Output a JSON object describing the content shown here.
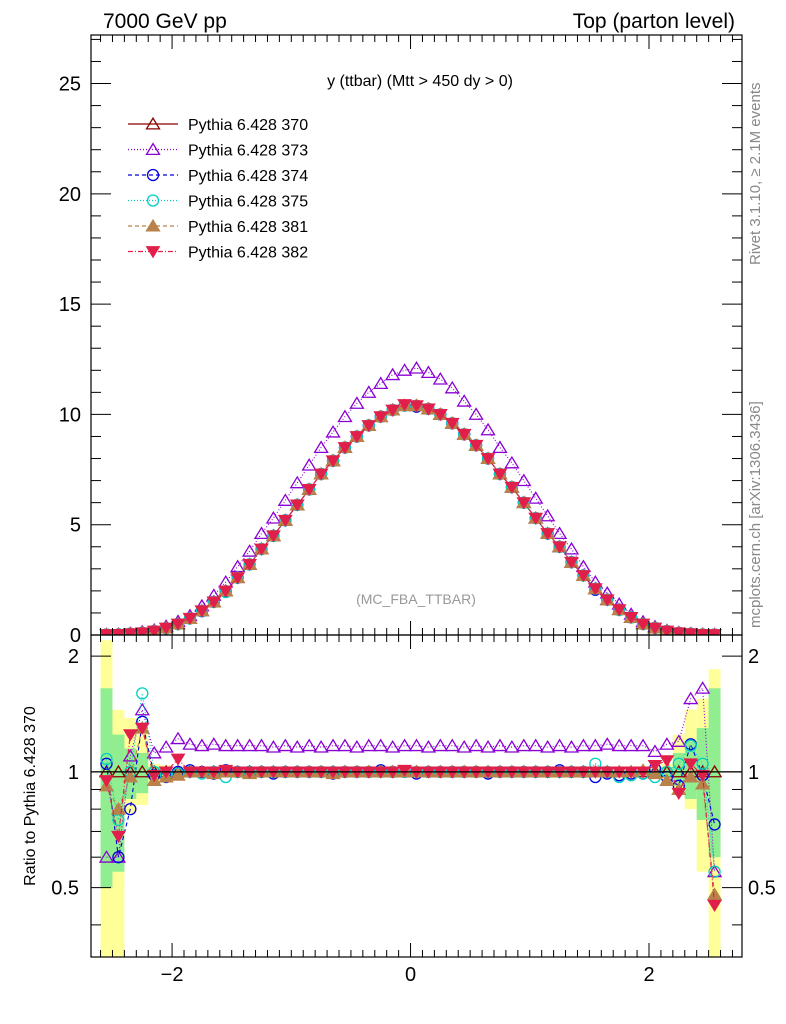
{
  "header": {
    "left": "7000 GeV pp",
    "right": "Top (parton level)"
  },
  "side_text": {
    "rivet": "Rivet 3.1.10, ≥ 2.1M events",
    "mcplots": "mcplots.cern.ch [arXiv:1306.3436]"
  },
  "colors": {
    "370": "#8b0000",
    "373": "#8a00d4",
    "374": "#0000e0",
    "375": "#00d0c0",
    "381": "#b8824a",
    "382": "#e0204a",
    "band_yellow": "#ffff99",
    "band_green": "#90ee90"
  },
  "chart_data": {
    "type": "line",
    "title": "y (ttbar) (Mtt > 450 dy > 0)",
    "watermark": "(MC_FBA_TTBAR)",
    "xlabel": "",
    "ylabel": "",
    "ratio_ylabel": "Ratio to Pythia 6.428 370",
    "xlim": [
      -2.68,
      2.78
    ],
    "ylim": [
      0,
      27.2
    ],
    "ratio_ylim": [
      0.33,
      2.27
    ],
    "x_ticks": [
      "−2",
      "0",
      "2"
    ],
    "y_ticks": [
      "0",
      "5",
      "10",
      "15",
      "20",
      "25"
    ],
    "ratio_y_ticks": [
      "0.5",
      "1",
      "2"
    ],
    "x": [
      -2.55,
      -2.45,
      -2.35,
      -2.25,
      -2.15,
      -2.05,
      -1.95,
      -1.85,
      -1.75,
      -1.65,
      -1.55,
      -1.45,
      -1.35,
      -1.25,
      -1.15,
      -1.05,
      -0.95,
      -0.85,
      -0.75,
      -0.65,
      -0.55,
      -0.45,
      -0.35,
      -0.25,
      -0.15,
      -0.05,
      0.05,
      0.15,
      0.25,
      0.35,
      0.45,
      0.55,
      0.65,
      0.75,
      0.85,
      0.95,
      1.05,
      1.15,
      1.25,
      1.35,
      1.45,
      1.55,
      1.65,
      1.75,
      1.85,
      1.95,
      2.05,
      2.15,
      2.25,
      2.35,
      2.45,
      2.55
    ],
    "series": [
      {
        "name": "Pythia 6.428 370",
        "key": "370",
        "marker": "triangle-open",
        "dash": "",
        "values": [
          0.02,
          0.03,
          0.06,
          0.1,
          0.18,
          0.32,
          0.5,
          0.75,
          1.1,
          1.5,
          2.0,
          2.6,
          3.2,
          3.9,
          4.5,
          5.2,
          5.9,
          6.6,
          7.3,
          7.9,
          8.5,
          9.0,
          9.5,
          9.9,
          10.2,
          10.4,
          10.4,
          10.25,
          10.0,
          9.6,
          9.1,
          8.6,
          8.0,
          7.3,
          6.7,
          6.0,
          5.3,
          4.6,
          4.0,
          3.3,
          2.7,
          2.1,
          1.6,
          1.15,
          0.8,
          0.5,
          0.32,
          0.18,
          0.1,
          0.06,
          0.03,
          0.02
        ],
        "ratio": [
          1.0,
          1.0,
          1.0,
          1.0,
          1.0,
          1.0,
          1.0,
          1.0,
          1.0,
          1.0,
          1.0,
          1.0,
          1.0,
          1.0,
          1.0,
          1.0,
          1.0,
          1.0,
          1.0,
          1.0,
          1.0,
          1.0,
          1.0,
          1.0,
          1.0,
          1.0,
          1.0,
          1.0,
          1.0,
          1.0,
          1.0,
          1.0,
          1.0,
          1.0,
          1.0,
          1.0,
          1.0,
          1.0,
          1.0,
          1.0,
          1.0,
          1.0,
          1.0,
          1.0,
          1.0,
          1.0,
          1.0,
          1.0,
          1.0,
          1.0,
          1.0,
          1.0
        ]
      },
      {
        "name": "Pythia 6.428 373",
        "key": "373",
        "marker": "triangle-open",
        "dash": "1,2",
        "values": [
          0.03,
          0.04,
          0.08,
          0.15,
          0.23,
          0.4,
          0.62,
          0.88,
          1.32,
          1.8,
          2.4,
          3.1,
          3.8,
          4.6,
          5.3,
          6.1,
          6.9,
          7.7,
          8.5,
          9.2,
          9.9,
          10.5,
          11.0,
          11.4,
          11.8,
          12.0,
          12.1,
          11.9,
          11.6,
          11.2,
          10.6,
          10.0,
          9.3,
          8.5,
          7.8,
          7.0,
          6.2,
          5.4,
          4.6,
          3.9,
          3.1,
          2.4,
          1.9,
          1.4,
          0.94,
          0.6,
          0.38,
          0.21,
          0.12,
          0.07,
          0.04,
          0.03
        ],
        "ratio": [
          0.6,
          0.6,
          1.1,
          1.45,
          1.12,
          1.16,
          1.22,
          1.18,
          1.17,
          1.18,
          1.17,
          1.17,
          1.17,
          1.17,
          1.16,
          1.17,
          1.16,
          1.17,
          1.16,
          1.17,
          1.17,
          1.16,
          1.17,
          1.17,
          1.16,
          1.17,
          1.17,
          1.16,
          1.17,
          1.17,
          1.16,
          1.17,
          1.16,
          1.17,
          1.16,
          1.17,
          1.17,
          1.16,
          1.17,
          1.16,
          1.17,
          1.17,
          1.18,
          1.17,
          1.17,
          1.17,
          1.13,
          1.18,
          1.2,
          1.55,
          1.65,
          0.55
        ]
      },
      {
        "name": "Pythia 6.428 374",
        "key": "374",
        "marker": "circle-open",
        "dash": "4,3",
        "values": [
          0.02,
          0.03,
          0.06,
          0.1,
          0.18,
          0.31,
          0.5,
          0.75,
          1.08,
          1.5,
          1.98,
          2.6,
          3.2,
          3.9,
          4.5,
          5.2,
          5.9,
          6.6,
          7.3,
          7.9,
          8.5,
          9.0,
          9.5,
          9.9,
          10.2,
          10.4,
          10.35,
          10.25,
          10.0,
          9.6,
          9.1,
          8.6,
          8.0,
          7.3,
          6.7,
          6.0,
          5.3,
          4.6,
          4.0,
          3.3,
          2.7,
          2.05,
          1.6,
          1.15,
          0.8,
          0.5,
          0.32,
          0.18,
          0.1,
          0.06,
          0.03,
          0.02
        ],
        "ratio": [
          1.05,
          0.6,
          0.8,
          1.35,
          0.98,
          0.97,
          1.0,
          1.01,
          1.0,
          0.99,
          1.01,
          1.0,
          1.0,
          1.0,
          0.99,
          1.0,
          1.0,
          1.0,
          1.0,
          0.99,
          1.0,
          1.0,
          1.0,
          1.01,
          1.0,
          1.0,
          0.99,
          1.0,
          1.0,
          1.0,
          1.0,
          1.0,
          0.99,
          1.0,
          1.0,
          1.0,
          1.0,
          1.0,
          1.01,
          1.0,
          1.0,
          0.97,
          0.99,
          0.98,
          0.99,
          0.99,
          1.02,
          0.97,
          0.92,
          1.18,
          0.98,
          0.73
        ]
      },
      {
        "name": "Pythia 6.428 375",
        "key": "375",
        "marker": "circle-open",
        "dash": "1,2",
        "values": [
          0.02,
          0.03,
          0.06,
          0.1,
          0.18,
          0.31,
          0.49,
          0.75,
          1.1,
          1.5,
          1.95,
          2.6,
          3.2,
          3.9,
          4.5,
          5.2,
          5.9,
          6.6,
          7.3,
          7.9,
          8.5,
          9.0,
          9.5,
          9.9,
          10.2,
          10.4,
          10.4,
          10.25,
          10.0,
          9.6,
          9.1,
          8.6,
          8.0,
          7.3,
          6.7,
          6.0,
          5.3,
          4.6,
          4.0,
          3.3,
          2.7,
          2.1,
          1.6,
          1.13,
          0.8,
          0.5,
          0.32,
          0.18,
          0.1,
          0.06,
          0.03,
          0.02
        ],
        "ratio": [
          1.08,
          0.75,
          1.0,
          1.6,
          1.0,
          0.98,
          0.99,
          1.0,
          0.99,
          1.0,
          0.97,
          1.0,
          1.0,
          1.0,
          1.0,
          1.0,
          1.0,
          1.0,
          1.0,
          1.0,
          1.0,
          1.0,
          1.0,
          1.0,
          1.0,
          1.0,
          1.0,
          1.0,
          1.0,
          1.0,
          1.0,
          1.0,
          1.0,
          1.0,
          1.0,
          1.0,
          1.0,
          1.0,
          1.0,
          1.0,
          1.0,
          1.05,
          1.0,
          0.97,
          0.98,
          0.99,
          0.97,
          1.0,
          1.05,
          1.17,
          1.05,
          0.55
        ]
      },
      {
        "name": "Pythia 6.428 381",
        "key": "381",
        "marker": "triangle-filled",
        "dash": "4,3",
        "values": [
          0.02,
          0.03,
          0.06,
          0.1,
          0.18,
          0.32,
          0.5,
          0.75,
          1.1,
          1.5,
          2.0,
          2.6,
          3.2,
          3.9,
          4.5,
          5.2,
          5.9,
          6.6,
          7.3,
          7.9,
          8.5,
          9.0,
          9.5,
          9.9,
          10.2,
          10.4,
          10.4,
          10.25,
          10.0,
          9.6,
          9.1,
          8.6,
          8.0,
          7.3,
          6.7,
          6.0,
          5.3,
          4.6,
          4.0,
          3.3,
          2.7,
          2.1,
          1.6,
          1.15,
          0.8,
          0.5,
          0.32,
          0.18,
          0.1,
          0.06,
          0.03,
          0.02
        ],
        "ratio": [
          0.92,
          0.8,
          0.97,
          1.3,
          0.95,
          0.97,
          0.98,
          1.0,
          1.0,
          0.99,
          1.0,
          1.0,
          0.99,
          1.0,
          1.0,
          1.0,
          1.0,
          1.0,
          1.0,
          0.99,
          1.0,
          1.0,
          1.0,
          1.0,
          1.0,
          1.0,
          1.0,
          1.0,
          1.0,
          1.0,
          1.0,
          1.0,
          1.0,
          1.0,
          1.0,
          1.0,
          1.0,
          1.0,
          1.0,
          1.0,
          1.0,
          1.0,
          1.0,
          1.0,
          1.0,
          1.01,
          0.99,
          0.95,
          0.9,
          0.97,
          0.93,
          0.48
        ]
      },
      {
        "name": "Pythia 6.428 382",
        "key": "382",
        "marker": "triangle-down-filled",
        "dash": "5,2,1,2",
        "values": [
          0.02,
          0.03,
          0.06,
          0.1,
          0.18,
          0.32,
          0.5,
          0.76,
          1.1,
          1.5,
          2.0,
          2.6,
          3.2,
          3.9,
          4.5,
          5.2,
          5.9,
          6.6,
          7.3,
          7.9,
          8.5,
          9.0,
          9.5,
          9.9,
          10.2,
          10.45,
          10.4,
          10.25,
          10.0,
          9.6,
          9.1,
          8.6,
          8.0,
          7.3,
          6.7,
          6.0,
          5.3,
          4.6,
          4.0,
          3.3,
          2.7,
          2.1,
          1.6,
          1.15,
          0.8,
          0.5,
          0.32,
          0.18,
          0.1,
          0.06,
          0.03,
          0.02
        ],
        "ratio": [
          0.95,
          0.68,
          1.25,
          1.3,
          0.98,
          1.0,
          1.08,
          1.0,
          1.0,
          1.0,
          1.01,
          1.0,
          1.0,
          1.0,
          1.0,
          1.0,
          1.0,
          1.0,
          1.0,
          1.0,
          1.0,
          1.0,
          1.0,
          1.0,
          1.0,
          1.01,
          1.0,
          1.0,
          1.0,
          1.0,
          1.0,
          1.0,
          1.0,
          1.0,
          1.0,
          1.0,
          1.0,
          1.0,
          1.0,
          1.0,
          1.0,
          1.0,
          1.0,
          1.0,
          1.0,
          1.0,
          1.04,
          1.07,
          0.88,
          1.05,
          0.98,
          0.45
        ]
      }
    ],
    "band_yellow": [
      [
        2.2,
        0.2
      ],
      [
        1.45,
        0.3
      ],
      [
        1.38,
        0.78
      ],
      [
        1.3,
        0.82
      ],
      [
        1.05,
        0.93
      ],
      [
        1.04,
        0.95
      ]
    ],
    "band_green": [
      [
        1.65,
        0.5
      ],
      [
        1.25,
        0.55
      ],
      [
        1.15,
        0.85
      ],
      [
        1.12,
        0.88
      ],
      [
        1.03,
        0.97
      ],
      [
        1.02,
        0.98
      ]
    ],
    "band_yellow_right": [
      [
        1.03,
        0.96
      ],
      [
        1.05,
        0.94
      ],
      [
        1.25,
        0.88
      ],
      [
        1.45,
        0.8
      ],
      [
        1.55,
        0.55
      ],
      [
        1.85,
        0.2
      ]
    ],
    "band_green_right": [
      [
        1.02,
        0.98
      ],
      [
        1.03,
        0.97
      ],
      [
        1.12,
        0.92
      ],
      [
        1.2,
        0.85
      ],
      [
        1.3,
        0.75
      ],
      [
        1.65,
        0.6
      ]
    ]
  }
}
